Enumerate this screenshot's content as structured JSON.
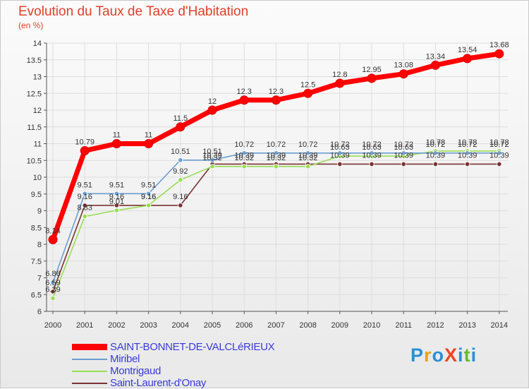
{
  "chart_data": {
    "type": "line",
    "title": "Evolution du Taux de Taxe d'Habitation",
    "ylabel": "(en %)",
    "xlabel": "",
    "ylim": [
      6,
      14
    ],
    "yticks": [
      "6",
      "6.5",
      "7",
      "7.5",
      "8",
      "8.5",
      "9",
      "9.5",
      "10",
      "10.5",
      "11",
      "11.5",
      "12",
      "12.5",
      "13",
      "13.5",
      "14"
    ],
    "categories": [
      "2000",
      "2001",
      "2002",
      "2003",
      "2004",
      "2005",
      "2006",
      "2007",
      "2008",
      "2009",
      "2010",
      "2011",
      "2012",
      "2013",
      "2014"
    ],
    "series": [
      {
        "name": "SAINT-BONNET-DE-VALCLéRIEUX",
        "color": "#ff0000",
        "values": [
          8.14,
          10.79,
          11,
          11,
          11.5,
          12,
          12.3,
          12.3,
          12.5,
          12.8,
          12.95,
          13.08,
          13.34,
          13.54,
          13.68
        ],
        "labels": [
          "8.14",
          "10.79",
          "11",
          "11",
          "11.5",
          "12",
          "12.3",
          "12.3",
          "12.5",
          "12.8",
          "12.95",
          "13.08",
          "13.34",
          "13.54",
          "13.68"
        ]
      },
      {
        "name": "Miribel",
        "color": "#6a9fd1",
        "values": [
          6.86,
          9.51,
          9.51,
          9.51,
          10.51,
          10.51,
          10.72,
          10.72,
          10.72,
          10.72,
          10.72,
          10.72,
          10.72,
          10.72,
          10.72
        ],
        "labels": [
          "6.86",
          "9.51",
          "9.51",
          "9.51",
          "10.51",
          "10.51",
          "10.72",
          "10.72",
          "10.72",
          "10.72",
          "10.72",
          "10.72",
          "10.72",
          "10.72",
          "10.72"
        ]
      },
      {
        "name": "Montrigaud",
        "color": "#99dd55",
        "values": [
          6.39,
          8.83,
          9.01,
          9.16,
          9.92,
          10.32,
          10.32,
          10.32,
          10.32,
          10.63,
          10.63,
          10.63,
          10.78,
          10.78,
          10.78
        ],
        "labels": [
          "6.39",
          "8.83",
          "9.01",
          "9.16",
          "9.92",
          "10.32",
          "10.32",
          "10.32",
          "10.32",
          "10.63",
          "10.63",
          "10.63",
          "10.78",
          "10.78",
          "10.78"
        ]
      },
      {
        "name": "Saint-Laurent-d'Onay",
        "color": "#7a3333",
        "values": [
          6.59,
          9.16,
          9.16,
          9.16,
          9.16,
          10.39,
          10.39,
          10.39,
          10.39,
          10.39,
          10.39,
          10.39,
          10.39,
          10.39,
          10.39
        ],
        "labels": [
          "6.59",
          "9.16",
          "9.16",
          "9.16",
          "9.16",
          "10.39",
          "10.39",
          "10.39",
          "10.39",
          "10.39",
          "10.39",
          "10.39",
          "10.39",
          "10.39",
          "10.39"
        ]
      }
    ],
    "legend_position": "bottom-left"
  },
  "brand": {
    "text": "ProXiti",
    "letter_colors": [
      "#2a8fd6",
      "#e8a21c",
      "#2a8fd6",
      "#ee4422",
      "#2a8fd6",
      "#66bb33",
      "#2a8fd6"
    ]
  }
}
